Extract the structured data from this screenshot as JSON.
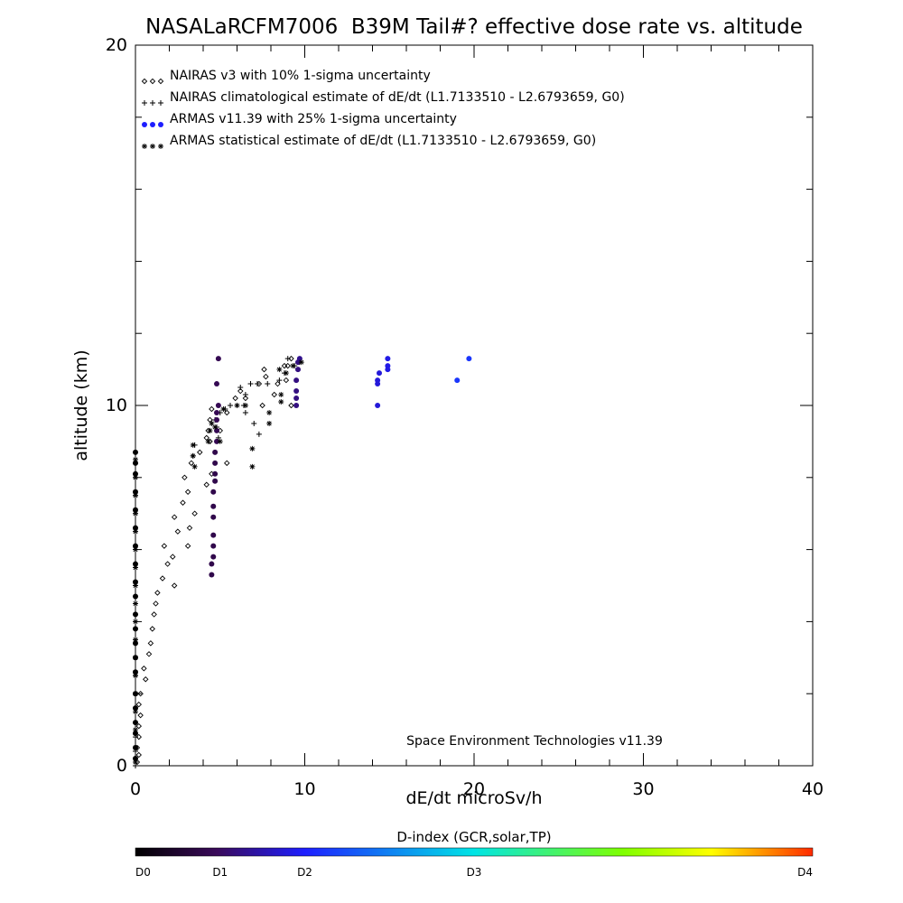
{
  "chart_data": {
    "type": "scatter",
    "title": "NASALaRCFM7006  B39M Tail#? effective dose rate vs. altitude",
    "xlabel": "dE/dt microSv/h",
    "ylabel": "altitude (km)",
    "xlim": [
      0,
      40
    ],
    "ylim": [
      0,
      20
    ],
    "x_ticks": [
      "0",
      "10",
      "20",
      "30",
      "40"
    ],
    "y_ticks": [
      "0",
      "10",
      "20"
    ],
    "x_tick_values": [
      0,
      10,
      20,
      30,
      40
    ],
    "y_tick_values": [
      0,
      10,
      20
    ],
    "credit": "Space Environment Technologies v11.39",
    "legend_placement": "top-left",
    "legend": [
      {
        "symbol": "◇◇◇",
        "label": "NAIRAS v3 with 10% 1-sigma uncertainty"
      },
      {
        "symbol": "+++",
        "label": "NAIRAS climatological estimate of dE/dt (L1.7133510 - L2.6793659, G0)"
      },
      {
        "symbol": "●●●",
        "label": "ARMAS v11.39 with 25% 1-sigma uncertainty"
      },
      {
        "symbol": "***",
        "label": "ARMAS statistical estimate of dE/dt (L1.7133510 - L2.6793659, G0)"
      }
    ],
    "colorbar": {
      "title": "D-index (GCR,solar,TP)",
      "labels": [
        "D0",
        "D1",
        "D2",
        "D3",
        "D4"
      ],
      "label_positions": [
        0,
        0.125,
        0.25,
        0.5,
        1.0
      ]
    },
    "series": [
      {
        "name": "NAIRAS v3 with 10% 1-sigma uncertainty",
        "marker": "diamond",
        "points": [
          [
            0.1,
            0.1
          ],
          [
            0.2,
            0.3
          ],
          [
            0.1,
            0.5
          ],
          [
            0.2,
            0.8
          ],
          [
            0.2,
            1.1
          ],
          [
            0.3,
            1.4
          ],
          [
            0.2,
            1.7
          ],
          [
            0.3,
            2.0
          ],
          [
            0.6,
            2.4
          ],
          [
            0.5,
            2.7
          ],
          [
            0.8,
            3.1
          ],
          [
            0.9,
            3.4
          ],
          [
            1.0,
            3.8
          ],
          [
            1.1,
            4.2
          ],
          [
            1.2,
            4.5
          ],
          [
            1.3,
            4.8
          ],
          [
            1.6,
            5.2
          ],
          [
            2.3,
            5.0
          ],
          [
            1.9,
            5.6
          ],
          [
            2.2,
            5.8
          ],
          [
            1.7,
            6.1
          ],
          [
            3.1,
            6.1
          ],
          [
            2.5,
            6.5
          ],
          [
            3.2,
            6.6
          ],
          [
            2.3,
            6.9
          ],
          [
            3.5,
            7.0
          ],
          [
            2.8,
            7.3
          ],
          [
            3.1,
            7.6
          ],
          [
            4.2,
            7.8
          ],
          [
            2.9,
            8.0
          ],
          [
            4.5,
            8.1
          ],
          [
            3.3,
            8.4
          ],
          [
            5.4,
            8.4
          ],
          [
            3.8,
            8.7
          ],
          [
            4.4,
            9.0
          ],
          [
            4.3,
            9.3
          ],
          [
            4.4,
            9.6
          ],
          [
            4.5,
            9.9
          ],
          [
            5.4,
            9.8
          ],
          [
            5.9,
            10.2
          ],
          [
            6.2,
            10.4
          ],
          [
            6.5,
            10.2
          ],
          [
            7.5,
            10.0
          ],
          [
            8.2,
            10.3
          ],
          [
            7.3,
            10.6
          ],
          [
            7.7,
            10.8
          ],
          [
            8.4,
            10.6
          ],
          [
            8.9,
            10.7
          ],
          [
            7.6,
            11.0
          ],
          [
            9.0,
            11.1
          ],
          [
            9.2,
            11.3
          ],
          [
            8.8,
            11.1
          ],
          [
            9.2,
            10.0
          ],
          [
            4.2,
            9.1
          ],
          [
            5.0,
            9.3
          ]
        ]
      },
      {
        "name": "NAIRAS climatological estimate of dE/dt (L1.7133510 - L2.6793659, G0)",
        "marker": "plus",
        "points": [
          [
            0.0,
            0.0
          ],
          [
            0.0,
            0.2
          ],
          [
            0.0,
            0.4
          ],
          [
            0.0,
            0.8
          ],
          [
            0.0,
            1.2
          ],
          [
            0.0,
            1.6
          ],
          [
            0.0,
            2.0
          ],
          [
            0.0,
            2.5
          ],
          [
            0.0,
            3.0
          ],
          [
            0.0,
            3.5
          ],
          [
            0.0,
            4.0
          ],
          [
            0.0,
            4.5
          ],
          [
            0.0,
            5.0
          ],
          [
            0.0,
            5.5
          ],
          [
            0.0,
            6.0
          ],
          [
            0.0,
            6.5
          ],
          [
            0.0,
            7.0
          ],
          [
            0.0,
            7.5
          ],
          [
            0.0,
            8.0
          ],
          [
            0.0,
            8.4
          ],
          [
            3.4,
            8.6
          ],
          [
            3.5,
            8.9
          ],
          [
            4.8,
            9.4
          ],
          [
            4.9,
            9.1
          ],
          [
            4.7,
            9.6
          ],
          [
            5.0,
            9.8
          ],
          [
            5.3,
            9.9
          ],
          [
            5.6,
            10.0
          ],
          [
            6.0,
            10.0
          ],
          [
            6.4,
            10.0
          ],
          [
            6.5,
            10.3
          ],
          [
            6.8,
            10.6
          ],
          [
            7.2,
            10.6
          ],
          [
            7.8,
            10.6
          ],
          [
            8.5,
            10.7
          ],
          [
            8.8,
            10.9
          ],
          [
            9.4,
            11.1
          ],
          [
            9.7,
            11.2
          ],
          [
            6.5,
            9.8
          ],
          [
            7.0,
            9.5
          ],
          [
            7.3,
            9.2
          ],
          [
            6.2,
            10.5
          ],
          [
            9.0,
            11.3
          ]
        ]
      },
      {
        "name": "ARMAS v11.39 with 25% 1-sigma uncertainty",
        "marker": "filled-circle",
        "points": [
          [
            0.0,
            0.2,
            0.0
          ],
          [
            0.0,
            0.5,
            0.0
          ],
          [
            0.0,
            0.9,
            0.0
          ],
          [
            0.0,
            1.2,
            0.0
          ],
          [
            0.0,
            1.6,
            0.0
          ],
          [
            0.0,
            2.0,
            0.0
          ],
          [
            0.0,
            2.6,
            0.0
          ],
          [
            0.0,
            3.0,
            0.0
          ],
          [
            0.0,
            3.4,
            0.0
          ],
          [
            0.0,
            3.8,
            0.0
          ],
          [
            0.0,
            4.2,
            0.0
          ],
          [
            0.0,
            4.7,
            0.0
          ],
          [
            0.0,
            5.1,
            0.0
          ],
          [
            0.0,
            5.6,
            0.0
          ],
          [
            0.0,
            6.1,
            0.0
          ],
          [
            0.0,
            6.6,
            0.0
          ],
          [
            0.0,
            7.1,
            0.0
          ],
          [
            0.0,
            7.6,
            0.0
          ],
          [
            0.0,
            8.1,
            0.0
          ],
          [
            0.0,
            8.4,
            0.0
          ],
          [
            0.0,
            8.7,
            0.0
          ],
          [
            4.5,
            5.3,
            0.1
          ],
          [
            4.5,
            5.6,
            0.1
          ],
          [
            4.6,
            5.8,
            0.1
          ],
          [
            4.6,
            6.1,
            0.1
          ],
          [
            4.6,
            6.4,
            0.1
          ],
          [
            4.6,
            6.9,
            0.1
          ],
          [
            4.6,
            7.2,
            0.1
          ],
          [
            4.6,
            7.6,
            0.1
          ],
          [
            4.7,
            7.9,
            0.1
          ],
          [
            4.7,
            8.1,
            0.1
          ],
          [
            4.7,
            8.4,
            0.1
          ],
          [
            4.7,
            8.7,
            0.1
          ],
          [
            4.8,
            9.0,
            0.11
          ],
          [
            4.8,
            9.3,
            0.11
          ],
          [
            4.8,
            9.6,
            0.11
          ],
          [
            4.8,
            9.8,
            0.11
          ],
          [
            4.9,
            10.0,
            0.11
          ],
          [
            4.8,
            10.6,
            0.11
          ],
          [
            4.9,
            11.3,
            0.11
          ],
          [
            9.5,
            10.0,
            0.15
          ],
          [
            9.5,
            10.2,
            0.15
          ],
          [
            9.5,
            10.4,
            0.15
          ],
          [
            9.5,
            10.7,
            0.15
          ],
          [
            9.6,
            11.0,
            0.15
          ],
          [
            9.6,
            11.2,
            0.15
          ],
          [
            9.7,
            11.3,
            0.16
          ],
          [
            14.3,
            10.0,
            0.22
          ],
          [
            14.3,
            10.6,
            0.22
          ],
          [
            14.3,
            10.7,
            0.22
          ],
          [
            14.4,
            10.9,
            0.22
          ],
          [
            14.9,
            11.0,
            0.23
          ],
          [
            14.9,
            11.1,
            0.23
          ],
          [
            14.9,
            11.3,
            0.23
          ],
          [
            19.0,
            10.7,
            0.28
          ],
          [
            19.7,
            11.3,
            0.28
          ]
        ]
      },
      {
        "name": "ARMAS statistical estimate of dE/dt (L1.7133510 - L2.6793659, G0)",
        "marker": "asterisk",
        "points": [
          [
            0.0,
            0.1
          ],
          [
            0.0,
            0.5
          ],
          [
            0.0,
            1.0
          ],
          [
            0.0,
            1.5
          ],
          [
            0.0,
            2.0
          ],
          [
            0.0,
            2.5
          ],
          [
            0.0,
            3.0
          ],
          [
            0.0,
            3.5
          ],
          [
            0.0,
            4.0
          ],
          [
            0.0,
            4.5
          ],
          [
            0.0,
            5.0
          ],
          [
            0.0,
            5.5
          ],
          [
            0.0,
            6.0
          ],
          [
            0.0,
            6.5
          ],
          [
            0.0,
            7.0
          ],
          [
            0.0,
            7.5
          ],
          [
            0.0,
            8.0
          ],
          [
            0.0,
            8.5
          ],
          [
            3.4,
            8.6
          ],
          [
            3.4,
            8.9
          ],
          [
            3.5,
            8.3
          ],
          [
            4.3,
            9.0
          ],
          [
            4.4,
            9.3
          ],
          [
            4.5,
            9.5
          ],
          [
            4.7,
            9.4
          ],
          [
            5.0,
            9.0
          ],
          [
            5.2,
            9.9
          ],
          [
            6.0,
            10.0
          ],
          [
            6.5,
            10.0
          ],
          [
            6.9,
            8.8
          ],
          [
            6.9,
            8.3
          ],
          [
            7.9,
            9.5
          ],
          [
            7.9,
            9.8
          ],
          [
            8.6,
            10.1
          ],
          [
            8.6,
            10.3
          ],
          [
            8.9,
            10.9
          ],
          [
            9.3,
            11.1
          ],
          [
            9.8,
            11.2
          ],
          [
            8.5,
            11.0
          ]
        ]
      }
    ]
  }
}
